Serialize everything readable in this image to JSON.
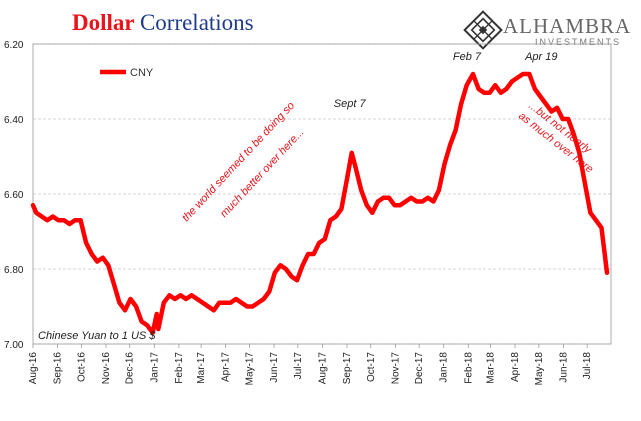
{
  "title_part1": "Dollar",
  "title_part2": "Correlations",
  "logo": {
    "name": "ALHAMBRA",
    "sub": "INVESTMENTS",
    "mark": "diamond-lattice-icon"
  },
  "colors": {
    "series": "#ff0000",
    "title_red": "#e8141c",
    "title_blue": "#1f3b8a",
    "annotation": "#e8141c",
    "grid": "#c8c8c8"
  },
  "chart_data": {
    "type": "line",
    "title": "Dollar Correlations",
    "ylabel": "",
    "xlabel": "",
    "ylim": [
      6.2,
      7.0
    ],
    "y_inverted": true,
    "grid": true,
    "legend_position": "top-left",
    "y_ticks": [
      "6.20",
      "6.40",
      "6.60",
      "6.80",
      "7.00"
    ],
    "x_ticks": [
      "Aug-16",
      "Sep-16",
      "Oct-16",
      "Nov-16",
      "Dec-16",
      "Jan-17",
      "Feb-17",
      "Mar-17",
      "Apr-17",
      "May-17",
      "Jun-17",
      "Jul-17",
      "Aug-17",
      "Sep-17",
      "Oct-17",
      "Nov-17",
      "Dec-17",
      "Jan-18",
      "Feb-18",
      "Mar-18",
      "Apr-18",
      "May-18",
      "Jun-18",
      "Jul-18"
    ],
    "inner_label": "Chinese Yuan to 1 US $",
    "series": [
      {
        "name": "CNY",
        "x": [
          "2016-08-01",
          "2016-08-05",
          "2016-08-12",
          "2016-08-19",
          "2016-08-26",
          "2016-09-02",
          "2016-09-09",
          "2016-09-16",
          "2016-09-23",
          "2016-09-30",
          "2016-10-07",
          "2016-10-14",
          "2016-10-21",
          "2016-10-28",
          "2016-11-04",
          "2016-11-11",
          "2016-11-18",
          "2016-11-25",
          "2016-12-02",
          "2016-12-09",
          "2016-12-16",
          "2016-12-23",
          "2016-12-30",
          "2017-01-04",
          "2017-01-06",
          "2017-01-13",
          "2017-01-20",
          "2017-01-27",
          "2017-02-03",
          "2017-02-10",
          "2017-02-17",
          "2017-02-24",
          "2017-03-03",
          "2017-03-10",
          "2017-03-17",
          "2017-03-24",
          "2017-03-31",
          "2017-04-07",
          "2017-04-14",
          "2017-04-21",
          "2017-04-28",
          "2017-05-05",
          "2017-05-12",
          "2017-05-19",
          "2017-05-26",
          "2017-06-02",
          "2017-06-09",
          "2017-06-16",
          "2017-06-23",
          "2017-06-30",
          "2017-07-07",
          "2017-07-14",
          "2017-07-21",
          "2017-07-28",
          "2017-08-04",
          "2017-08-11",
          "2017-08-18",
          "2017-08-25",
          "2017-09-01",
          "2017-09-07",
          "2017-09-12",
          "2017-09-19",
          "2017-09-26",
          "2017-10-03",
          "2017-10-10",
          "2017-10-17",
          "2017-10-24",
          "2017-10-31",
          "2017-11-07",
          "2017-11-14",
          "2017-11-21",
          "2017-11-28",
          "2017-12-05",
          "2017-12-12",
          "2017-12-19",
          "2017-12-26",
          "2018-01-02",
          "2018-01-09",
          "2018-01-16",
          "2018-01-23",
          "2018-01-30",
          "2018-02-07",
          "2018-02-14",
          "2018-02-21",
          "2018-02-28",
          "2018-03-07",
          "2018-03-14",
          "2018-03-21",
          "2018-03-28",
          "2018-04-04",
          "2018-04-11",
          "2018-04-19",
          "2018-04-26",
          "2018-05-03",
          "2018-05-10",
          "2018-05-17",
          "2018-05-24",
          "2018-05-31",
          "2018-06-07",
          "2018-06-14",
          "2018-06-21",
          "2018-06-28",
          "2018-07-05",
          "2018-07-12",
          "2018-07-19",
          "2018-07-26"
        ],
        "values": [
          6.63,
          6.65,
          6.66,
          6.67,
          6.66,
          6.67,
          6.67,
          6.68,
          6.67,
          6.67,
          6.73,
          6.76,
          6.78,
          6.77,
          6.79,
          6.84,
          6.89,
          6.91,
          6.88,
          6.9,
          6.94,
          6.95,
          6.97,
          6.92,
          6.96,
          6.89,
          6.87,
          6.88,
          6.87,
          6.88,
          6.87,
          6.88,
          6.89,
          6.9,
          6.91,
          6.89,
          6.89,
          6.89,
          6.88,
          6.89,
          6.9,
          6.9,
          6.89,
          6.88,
          6.86,
          6.81,
          6.79,
          6.8,
          6.82,
          6.83,
          6.79,
          6.76,
          6.76,
          6.73,
          6.72,
          6.67,
          6.66,
          6.64,
          6.56,
          6.49,
          6.53,
          6.59,
          6.63,
          6.65,
          6.62,
          6.61,
          6.61,
          6.63,
          6.63,
          6.62,
          6.61,
          6.62,
          6.62,
          6.61,
          6.62,
          6.59,
          6.52,
          6.47,
          6.43,
          6.36,
          6.31,
          6.28,
          6.32,
          6.33,
          6.33,
          6.31,
          6.33,
          6.32,
          6.3,
          6.29,
          6.28,
          6.28,
          6.32,
          6.34,
          6.36,
          6.38,
          6.37,
          6.4,
          6.4,
          6.44,
          6.49,
          6.57,
          6.65,
          6.67,
          6.69,
          6.81
        ]
      }
    ],
    "annotations": [
      {
        "text": "Sept 7",
        "x": "2017-09-07",
        "y": 6.49
      },
      {
        "text": "Feb 7",
        "x": "2018-02-07",
        "y": 6.28
      },
      {
        "text": "Apr 19",
        "x": "2018-04-19",
        "y": 6.28
      },
      {
        "text": "the world seemed to be doing so",
        "x": "2017-04-20",
        "y": 6.52
      },
      {
        "text": "much better over here...",
        "x": "2017-05-20",
        "y": 6.55
      },
      {
        "text": "...but not nearly",
        "x": "2018-05-25",
        "y": 6.43
      },
      {
        "text": "as much over here",
        "x": "2018-05-20",
        "y": 6.47
      }
    ]
  }
}
